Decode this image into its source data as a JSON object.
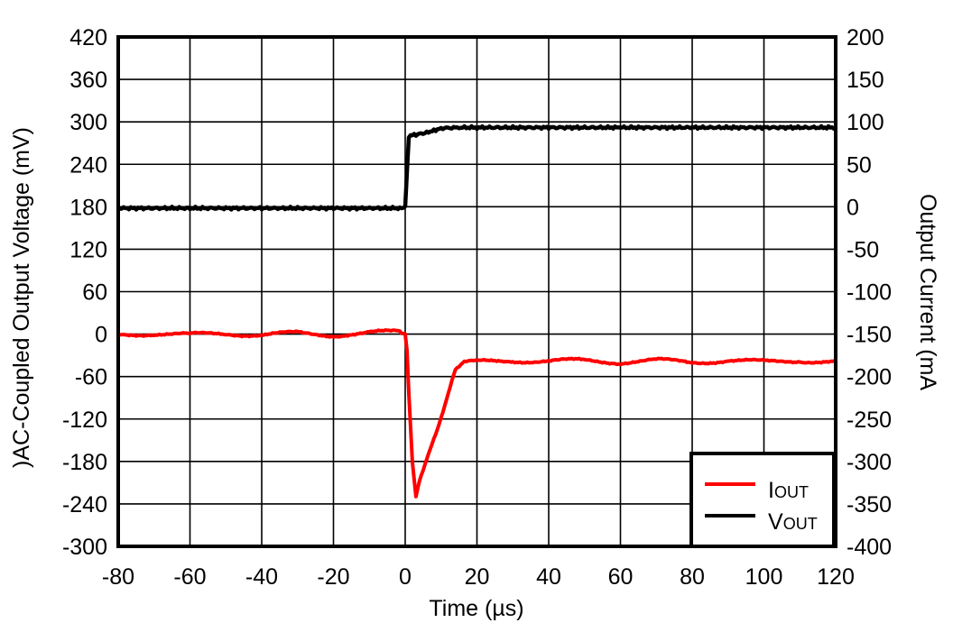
{
  "chart_data": {
    "type": "line",
    "title": "",
    "xlabel": "Time (µs)",
    "ylabel": ")AC-Coupled Output Voltage (mV)",
    "y2label": "Output Current (mA",
    "xlim": [
      -80,
      120
    ],
    "ylim": [
      -300,
      420
    ],
    "y2lim": [
      -400,
      200
    ],
    "grid": true,
    "legend_position": "lower right",
    "x_ticks": [
      "-80",
      "-60",
      "-40",
      "-20",
      "0",
      "20",
      "40",
      "60",
      "80",
      "100",
      "120"
    ],
    "y_ticks": [
      "420",
      "360",
      "300",
      "240",
      "180",
      "120",
      "60",
      "0",
      "-60",
      "-120",
      "-180",
      "-240",
      "-300"
    ],
    "y2_ticks": [
      "200",
      "150",
      "100",
      "50",
      "0",
      "-50",
      "-100",
      "-150",
      "-200",
      "-250",
      "-300",
      "-350",
      "-400"
    ],
    "legend": [
      {
        "label_main": "I",
        "label_sub": "OUT",
        "color": "#ff0000"
      },
      {
        "label_main": "V",
        "label_sub": "OUT",
        "color": "#000000"
      }
    ],
    "series": [
      {
        "name": "IOUT",
        "axis": "right",
        "unit": "mA",
        "color": "#ff0000",
        "x": [
          -80,
          -70,
          -60,
          -50,
          -40,
          -30,
          -20,
          -10,
          -2,
          0,
          0.5,
          1,
          2,
          3,
          4,
          5,
          7,
          9,
          11,
          13,
          14,
          16,
          20,
          30,
          40,
          50,
          60,
          70,
          80,
          90,
          100,
          110,
          120
        ],
        "values": [
          -151,
          -149,
          -151,
          -149,
          -151,
          -149,
          -151,
          -149,
          -147,
          -150,
          -170,
          -220,
          -300,
          -341,
          -322,
          -310,
          -285,
          -262,
          -235,
          -205,
          -192,
          -184,
          -183,
          -181,
          -182,
          -181,
          -183,
          -181,
          -183,
          -181,
          -183,
          -181,
          -183
        ]
      },
      {
        "name": "VOUT",
        "axis": "left",
        "unit": "mV",
        "color": "#000000",
        "x": [
          -80,
          -60,
          -40,
          -20,
          -1,
          0,
          0.5,
          1,
          2,
          4,
          6,
          8,
          10,
          15,
          20,
          40,
          60,
          80,
          100,
          120
        ],
        "values": [
          178,
          178,
          178,
          178,
          178,
          180,
          230,
          278,
          281,
          283,
          285,
          288,
          291,
          292,
          292,
          292,
          292,
          292,
          292,
          292
        ]
      }
    ]
  }
}
